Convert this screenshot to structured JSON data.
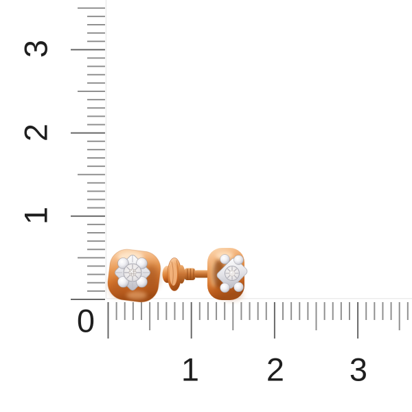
{
  "page": {
    "background_color": "#ffffff",
    "content_type": "jewelry product photo with centimeter rulers"
  },
  "photo": {
    "alt": "pair of rose gold stud earrings with diamond illusion settings, one front view and one side view with screw back",
    "colors": {
      "rose_gold_light": "#fbdcb8",
      "rose_gold_mid": "#e6954f",
      "rose_gold_deep": "#a04c15",
      "white_gold_light": "#ffffff",
      "white_gold_mid": "#d3d3da",
      "white_gold_deep": "#a2a2ab",
      "diamond": "#edeae8"
    }
  },
  "rulers": {
    "unit": "cm",
    "tick_color_minor": "#8f8f8f",
    "tick_color_major": "#666666",
    "baseline_color": "#ececec",
    "label_color": "#1f1f1f",
    "vertical": {
      "labels": [
        "3",
        "2",
        "1",
        "0"
      ]
    },
    "horizontal": {
      "labels": [
        "1",
        "2",
        "3"
      ]
    }
  }
}
